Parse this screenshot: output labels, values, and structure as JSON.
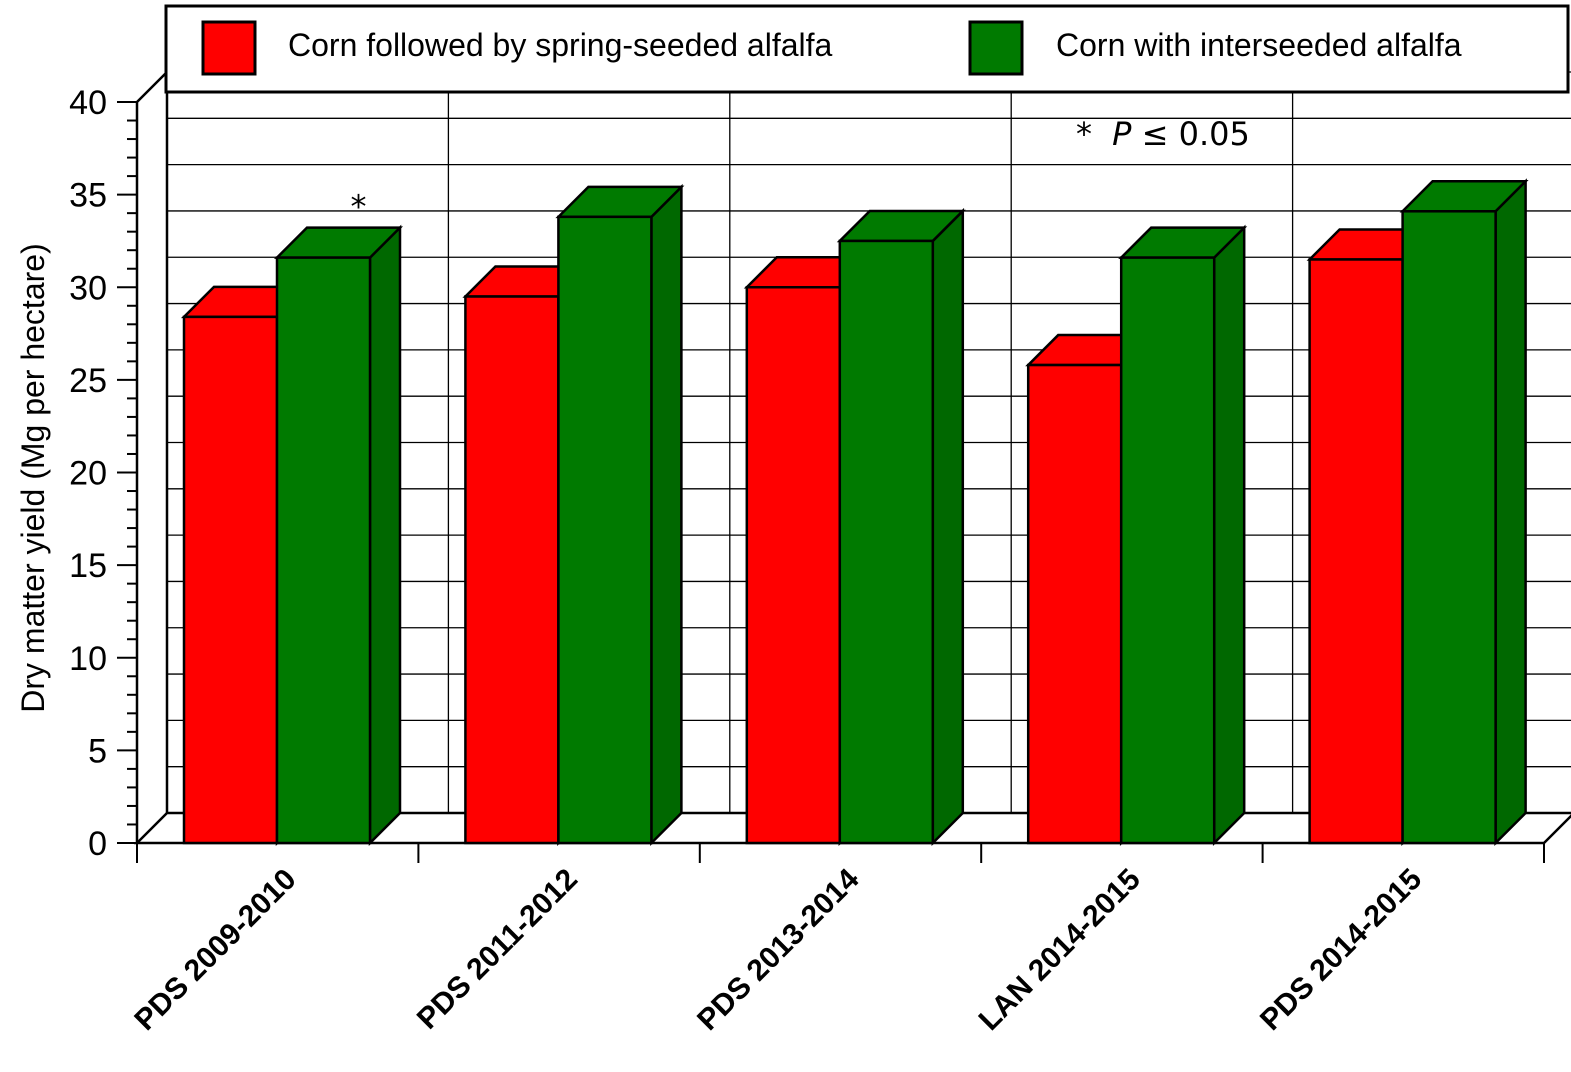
{
  "chart_data": {
    "type": "bar",
    "categories": [
      "PDS 2009-2010",
      "PDS 2011-2012",
      "PDS 2013-2014",
      "LAN 2014-2015",
      "PDS 2014-2015"
    ],
    "series": [
      {
        "name": "Corn followed by spring-seeded alfalfa",
        "color": "#ff0000",
        "values": [
          28.4,
          29.5,
          30.0,
          25.8,
          31.5
        ]
      },
      {
        "name": "Corn with interseeded alfalfa",
        "color": "#007a00",
        "values": [
          31.6,
          33.8,
          32.5,
          31.6,
          34.1
        ]
      }
    ],
    "ylabel": "Dry matter yield (Mg per hectare)",
    "xlabel": "",
    "ylim": [
      0,
      40
    ],
    "yticks": [
      "0",
      "5",
      "10",
      "15",
      "20",
      "25",
      "30",
      "35",
      "40"
    ],
    "grid": true,
    "legend_position": "top",
    "annotations": {
      "significance_note_star": "*",
      "significance_note_p": "P",
      "significance_note_rest": " ≤ 0.05",
      "bar_marks": [
        {
          "category_index": 0,
          "series_index": 1,
          "text": "*"
        }
      ]
    }
  }
}
